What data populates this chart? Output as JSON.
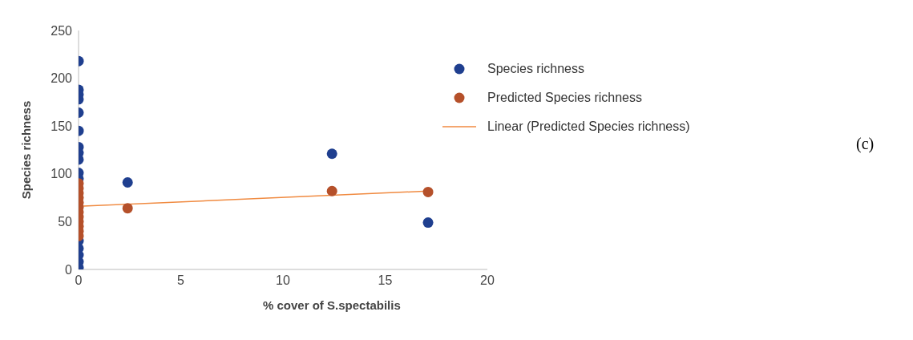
{
  "chart_data": {
    "type": "scatter",
    "xlabel": "% cover of S.spectabilis",
    "ylabel": "Species richness",
    "xlim": [
      0,
      20
    ],
    "xticks": [
      0,
      5,
      10,
      15,
      20
    ],
    "ylim": [
      0,
      250
    ],
    "yticks": [
      0,
      50,
      100,
      150,
      200,
      250
    ],
    "grid": false,
    "legend": "top right",
    "marker": "circle",
    "annotations": [
      "(c)"
    ],
    "series": [
      {
        "name": "Species richness",
        "color": "#1f3f8f",
        "x": [
          0,
          0,
          0,
          0,
          0,
          0,
          0,
          0,
          0,
          0,
          0,
          0,
          0,
          0,
          0,
          0,
          2.4,
          12.4,
          17.1
        ],
        "values": [
          218,
          188,
          183,
          178,
          164,
          145,
          128,
          122,
          115,
          101,
          95,
          30,
          22,
          15,
          8,
          2,
          91,
          121,
          49
        ]
      },
      {
        "name": "Predicted Species richness",
        "color": "#b5502a",
        "x": [
          0,
          0,
          0,
          0,
          0,
          0,
          0,
          0,
          0,
          0,
          0,
          0,
          2.4,
          12.4,
          17.1
        ],
        "values": [
          90,
          85,
          80,
          75,
          70,
          65,
          60,
          55,
          50,
          45,
          40,
          35,
          64,
          82,
          81
        ]
      },
      {
        "name": "Linear (Predicted Species richness)",
        "type": "line",
        "marker": "none",
        "color": "#f08a40",
        "x": [
          0,
          17.1
        ],
        "values": [
          66,
          82
        ]
      }
    ]
  }
}
